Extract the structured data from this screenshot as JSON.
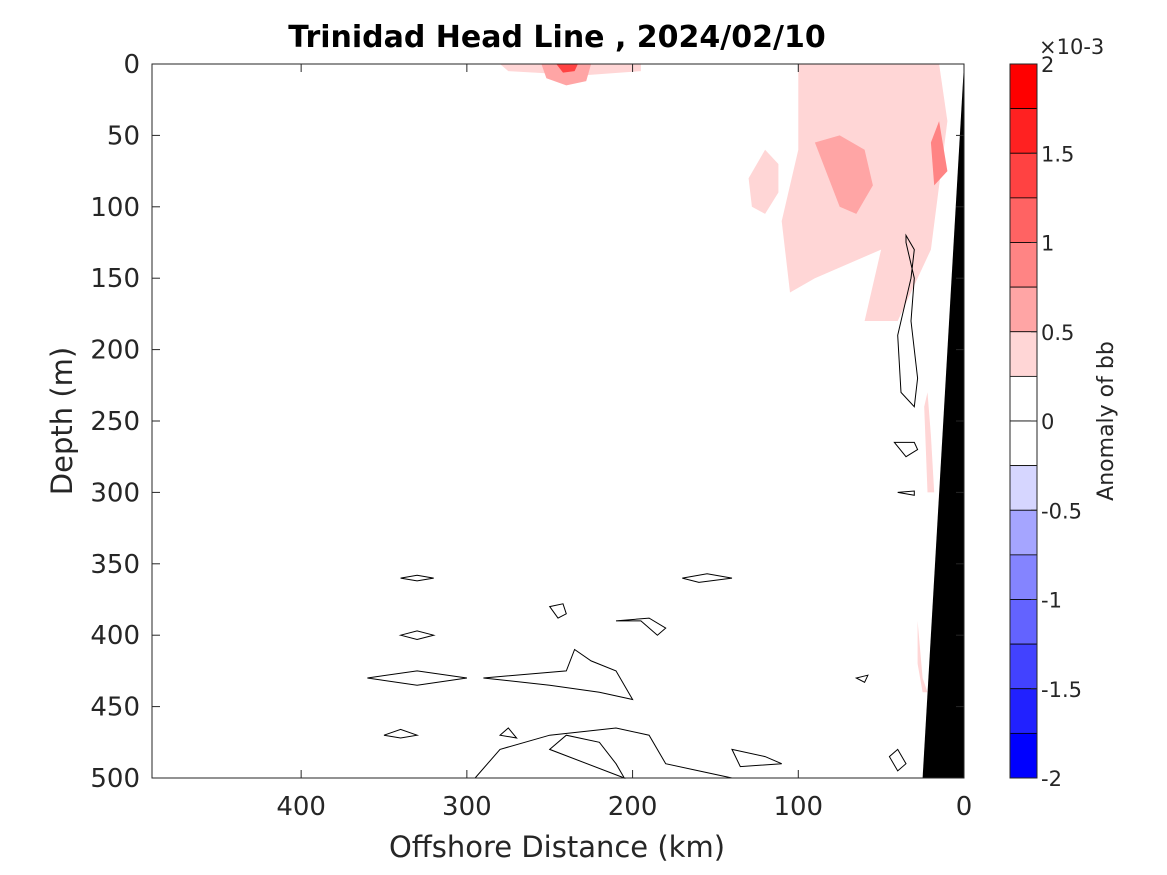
{
  "chart_data": {
    "type": "contour",
    "title": "Trinidad Head Line , 2024/02/10",
    "xlabel": "Offshore Distance (km)",
    "ylabel": "Depth (m)",
    "xlim": [
      490,
      0
    ],
    "ylim": [
      0,
      500
    ],
    "x_reversed": true,
    "y_reversed": true,
    "xticks": [
      400,
      300,
      200,
      100,
      0
    ],
    "yticks": [
      0,
      50,
      100,
      150,
      200,
      250,
      300,
      350,
      400,
      450,
      500
    ],
    "colorbar": {
      "label": "Anomaly of bb",
      "exponent": "×10-3",
      "range": [
        -2,
        2
      ],
      "ticks": [
        2,
        1.5,
        1,
        0.5,
        0,
        -0.5,
        -1,
        -1.5,
        -2
      ],
      "tick_labels": [
        "2",
        "1.5",
        "1",
        "0.5",
        "0",
        "-0.5",
        "-1",
        "-1.5",
        "-2"
      ],
      "levels": [
        2,
        1.75,
        1.5,
        1.25,
        1,
        0.75,
        0.5,
        0.25,
        0,
        -0.25,
        -0.5,
        -0.75,
        -1,
        -1.25,
        -1.5,
        -1.75,
        -2
      ],
      "colors": [
        "#ff0000",
        "#ff2121",
        "#ff4242",
        "#ff6363",
        "#ff8484",
        "#ffa5a5",
        "#ffd6d6",
        "#ffffff",
        "#ffffff",
        "#d6d6ff",
        "#a5a5ff",
        "#8484ff",
        "#6363ff",
        "#4242ff",
        "#2121ff",
        "#0000ff"
      ]
    },
    "positive_regions": [
      {
        "level": 0.25,
        "points": [
          [
            280,
            0
          ],
          [
            195,
            0
          ],
          [
            195,
            5
          ],
          [
            230,
            8
          ],
          [
            275,
            5
          ]
        ]
      },
      {
        "level": 0.75,
        "points": [
          [
            255,
            0
          ],
          [
            225,
            0
          ],
          [
            228,
            12
          ],
          [
            240,
            15
          ],
          [
            252,
            10
          ]
        ]
      },
      {
        "level": 1.5,
        "points": [
          [
            246,
            0
          ],
          [
            233,
            0
          ],
          [
            235,
            5
          ],
          [
            242,
            6
          ]
        ]
      },
      {
        "level": 0.25,
        "points": [
          [
            100,
            0
          ],
          [
            15,
            0
          ],
          [
            10,
            40
          ],
          [
            20,
            130
          ],
          [
            40,
            180
          ],
          [
            60,
            180
          ],
          [
            50,
            130
          ],
          [
            90,
            150
          ],
          [
            105,
            160
          ],
          [
            110,
            110
          ],
          [
            100,
            60
          ],
          [
            100,
            0
          ]
        ]
      },
      {
        "level": 0.25,
        "points": [
          [
            120,
            60
          ],
          [
            130,
            80
          ],
          [
            128,
            100
          ],
          [
            120,
            105
          ],
          [
            112,
            90
          ],
          [
            112,
            70
          ]
        ]
      },
      {
        "level": 0.75,
        "points": [
          [
            90,
            55
          ],
          [
            75,
            100
          ],
          [
            65,
            105
          ],
          [
            55,
            85
          ],
          [
            60,
            60
          ],
          [
            75,
            50
          ]
        ]
      },
      {
        "level": 1.0,
        "points": [
          [
            15,
            40
          ],
          [
            10,
            75
          ],
          [
            18,
            85
          ],
          [
            20,
            55
          ]
        ]
      },
      {
        "level": 0.25,
        "points": [
          [
            22,
            230
          ],
          [
            20,
            260
          ],
          [
            18,
            300
          ],
          [
            22,
            300
          ],
          [
            24,
            240
          ]
        ]
      },
      {
        "level": 0.25,
        "points": [
          [
            28,
            390
          ],
          [
            25,
            430
          ],
          [
            22,
            440
          ],
          [
            25,
            440
          ],
          [
            28,
            420
          ]
        ]
      }
    ],
    "zero_contours": [
      [
        [
          35,
          120
        ],
        [
          30,
          130
        ],
        [
          32,
          150
        ],
        [
          40,
          190
        ],
        [
          38,
          230
        ],
        [
          30,
          240
        ],
        [
          28,
          220
        ],
        [
          32,
          180
        ],
        [
          30,
          150
        ],
        [
          35,
          125
        ]
      ],
      [
        [
          42,
          265
        ],
        [
          35,
          275
        ],
        [
          28,
          270
        ],
        [
          30,
          265
        ]
      ],
      [
        [
          40,
          300
        ],
        [
          30,
          302
        ],
        [
          30,
          299
        ]
      ],
      [
        [
          340,
          360
        ],
        [
          330,
          362
        ],
        [
          320,
          360
        ],
        [
          330,
          358
        ]
      ],
      [
        [
          340,
          400
        ],
        [
          330,
          403
        ],
        [
          320,
          400
        ],
        [
          330,
          397
        ]
      ],
      [
        [
          250,
          380
        ],
        [
          245,
          388
        ],
        [
          240,
          385
        ],
        [
          242,
          378
        ]
      ],
      [
        [
          170,
          360
        ],
        [
          160,
          363
        ],
        [
          140,
          360
        ],
        [
          155,
          357
        ]
      ],
      [
        [
          210,
          390
        ],
        [
          195,
          390
        ],
        [
          185,
          400
        ],
        [
          180,
          395
        ],
        [
          190,
          388
        ]
      ],
      [
        [
          360,
          430
        ],
        [
          330,
          435
        ],
        [
          300,
          430
        ],
        [
          330,
          425
        ]
      ],
      [
        [
          290,
          430
        ],
        [
          250,
          435
        ],
        [
          220,
          440
        ],
        [
          200,
          445
        ],
        [
          210,
          425
        ],
        [
          225,
          418
        ],
        [
          235,
          410
        ],
        [
          240,
          425
        ]
      ],
      [
        [
          350,
          470
        ],
        [
          340,
          472
        ],
        [
          330,
          470
        ],
        [
          340,
          466
        ]
      ],
      [
        [
          280,
          470
        ],
        [
          275,
          465
        ],
        [
          270,
          472
        ]
      ],
      [
        [
          295,
          500
        ],
        [
          280,
          480
        ],
        [
          250,
          470
        ],
        [
          210,
          465
        ],
        [
          190,
          470
        ],
        [
          180,
          490
        ],
        [
          160,
          495
        ],
        [
          140,
          500
        ]
      ],
      [
        [
          250,
          480
        ],
        [
          240,
          470
        ],
        [
          220,
          475
        ],
        [
          210,
          490
        ],
        [
          205,
          500
        ]
      ],
      [
        [
          140,
          480
        ],
        [
          120,
          485
        ],
        [
          110,
          490
        ],
        [
          135,
          492
        ]
      ],
      [
        [
          45,
          485
        ],
        [
          40,
          495
        ],
        [
          35,
          490
        ],
        [
          40,
          480
        ]
      ],
      [
        [
          65,
          430
        ],
        [
          60,
          433
        ],
        [
          58,
          428
        ]
      ]
    ],
    "bathymetry": [
      [
        0,
        0
      ],
      [
        25,
        500
      ],
      [
        0,
        500
      ]
    ]
  }
}
